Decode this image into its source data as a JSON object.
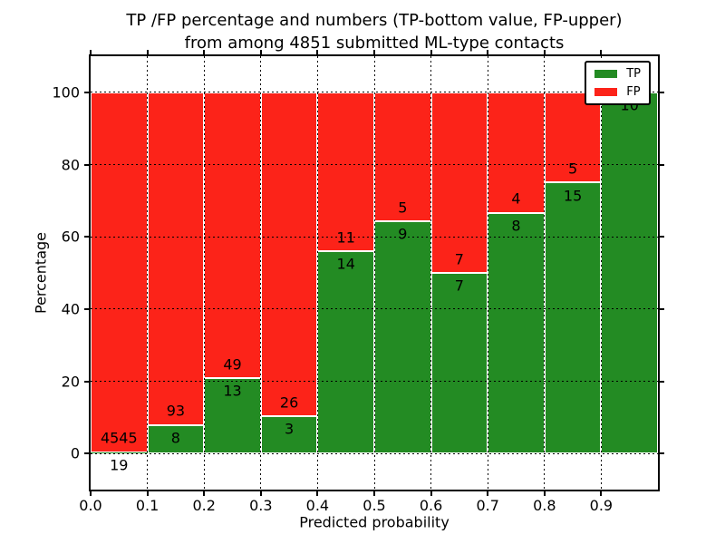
{
  "figure": {
    "title_line1": "TP /FP percentage and numbers (TP-bottom value, FP-upper)",
    "title_line2": "from among 4851 submitted ML-type contacts"
  },
  "chart_data": {
    "type": "bar",
    "stacked": true,
    "title": "TP /FP percentage and numbers (TP-bottom value, FP-upper)\nfrom among 4851 submitted ML-type contacts",
    "xlabel": "Predicted probability",
    "ylabel": "Percentage",
    "xlim": [
      0.0,
      1.0
    ],
    "ylim": [
      -10,
      110
    ],
    "grid": true,
    "legend_position": "upper right",
    "total_contacts": 4851,
    "x_tick_values": [
      0.0,
      0.1,
      0.2,
      0.3,
      0.4,
      0.5,
      0.6,
      0.7,
      0.8,
      0.9
    ],
    "x_tick_labels": [
      "0.0",
      "0.1",
      "0.2",
      "0.3",
      "0.4",
      "0.5",
      "0.6",
      "0.7",
      "0.8",
      "0.9"
    ],
    "y_tick_values": [
      0,
      20,
      40,
      60,
      80,
      100
    ],
    "y_tick_labels": [
      "0",
      "20",
      "40",
      "60",
      "80",
      "100"
    ],
    "legend": [
      {
        "label": "TP",
        "color": "#238b23"
      },
      {
        "label": "FP",
        "color": "#fc2319"
      }
    ],
    "bars": [
      {
        "bin_start": 0.0,
        "bin_end": 0.1,
        "tp": 19,
        "fp": 4545,
        "tp_pct": 0.42,
        "fp_pct": 99.58,
        "fp_label_visible": true
      },
      {
        "bin_start": 0.1,
        "bin_end": 0.2,
        "tp": 8,
        "fp": 93,
        "tp_pct": 7.92,
        "fp_pct": 92.08,
        "fp_label_visible": true
      },
      {
        "bin_start": 0.2,
        "bin_end": 0.3,
        "tp": 13,
        "fp": 49,
        "tp_pct": 20.97,
        "fp_pct": 79.03,
        "fp_label_visible": true
      },
      {
        "bin_start": 0.3,
        "bin_end": 0.4,
        "tp": 3,
        "fp": 26,
        "tp_pct": 10.34,
        "fp_pct": 89.66,
        "fp_label_visible": true
      },
      {
        "bin_start": 0.4,
        "bin_end": 0.5,
        "tp": 14,
        "fp": 11,
        "tp_pct": 56.0,
        "fp_pct": 44.0,
        "fp_label_visible": true
      },
      {
        "bin_start": 0.5,
        "bin_end": 0.6,
        "tp": 9,
        "fp": 5,
        "tp_pct": 64.29,
        "fp_pct": 35.71,
        "fp_label_visible": true
      },
      {
        "bin_start": 0.6,
        "bin_end": 0.7,
        "tp": 7,
        "fp": 7,
        "tp_pct": 50.0,
        "fp_pct": 50.0,
        "fp_label_visible": true
      },
      {
        "bin_start": 0.7,
        "bin_end": 0.8,
        "tp": 8,
        "fp": 4,
        "tp_pct": 66.67,
        "fp_pct": 33.33,
        "fp_label_visible": true
      },
      {
        "bin_start": 0.8,
        "bin_end": 0.9,
        "tp": 15,
        "fp": 5,
        "tp_pct": 75.0,
        "fp_pct": 25.0,
        "fp_label_visible": true
      },
      {
        "bin_start": 0.9,
        "bin_end": 1.0,
        "tp": 10,
        "fp": 0,
        "tp_pct": 100.0,
        "fp_pct": 0.0,
        "fp_label_visible": false
      }
    ]
  }
}
